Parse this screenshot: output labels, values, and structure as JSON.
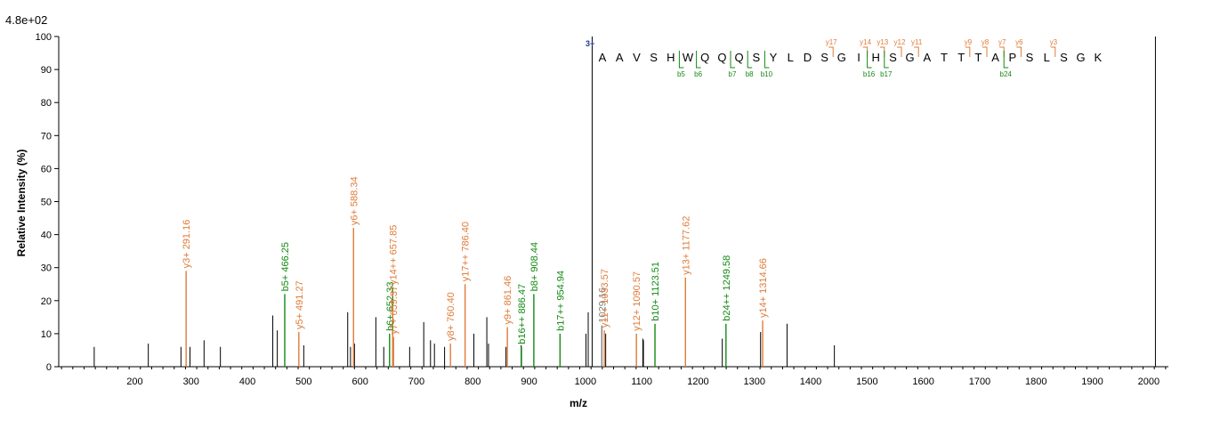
{
  "chart_data": {
    "type": "bar",
    "scale_label": "4.8e+02",
    "xlabel": "m/z",
    "ylabel": "Relative   Intensity (%)",
    "xlim": [
      65,
      2035
    ],
    "ylim": [
      0,
      100
    ],
    "x_ticks": [
      "200",
      "300",
      "400",
      "500",
      "600",
      "700",
      "800",
      "900",
      "1000",
      "1100",
      "1200",
      "1300",
      "1400",
      "1500",
      "1600",
      "1700",
      "1800",
      "1900",
      "2000"
    ],
    "y_ticks": [
      "0",
      "10",
      "20",
      "30",
      "40",
      "50",
      "60",
      "70",
      "80",
      "90",
      "100"
    ],
    "colors": {
      "unassigned": "#000000",
      "y_ion": "#e07b39",
      "b_ion": "#138a13",
      "precursor": "#808080",
      "charge": "#1f3a93"
    },
    "unassigned_peaks": [
      {
        "x": 128,
        "y": 6
      },
      {
        "x": 224,
        "y": 7
      },
      {
        "x": 282,
        "y": 6
      },
      {
        "x": 298,
        "y": 6
      },
      {
        "x": 323,
        "y": 8
      },
      {
        "x": 352,
        "y": 6
      },
      {
        "x": 445,
        "y": 15.5
      },
      {
        "x": 453,
        "y": 11
      },
      {
        "x": 500,
        "y": 6.5
      },
      {
        "x": 578,
        "y": 16.5
      },
      {
        "x": 583,
        "y": 6
      },
      {
        "x": 590,
        "y": 7
      },
      {
        "x": 628,
        "y": 15
      },
      {
        "x": 642,
        "y": 6
      },
      {
        "x": 688,
        "y": 6
      },
      {
        "x": 713,
        "y": 13.5
      },
      {
        "x": 725,
        "y": 8
      },
      {
        "x": 732,
        "y": 7
      },
      {
        "x": 750,
        "y": 6
      },
      {
        "x": 802,
        "y": 10
      },
      {
        "x": 825,
        "y": 15
      },
      {
        "x": 828,
        "y": 7
      },
      {
        "x": 859,
        "y": 6
      },
      {
        "x": 886,
        "y": 6.5
      },
      {
        "x": 1001,
        "y": 10
      },
      {
        "x": 1005,
        "y": 16.5
      },
      {
        "x": 1012,
        "y": 100
      },
      {
        "x": 1036,
        "y": 10
      },
      {
        "x": 1102,
        "y": 8.5
      },
      {
        "x": 1103,
        "y": 8
      },
      {
        "x": 1243,
        "y": 8.5
      },
      {
        "x": 1311,
        "y": 10.5
      },
      {
        "x": 1358,
        "y": 13
      },
      {
        "x": 1442,
        "y": 6.5
      },
      {
        "x": 2012,
        "y": 100
      }
    ],
    "annotated_peaks": [
      {
        "x": 291.16,
        "y": 29,
        "label": "y3+ 291.16",
        "ion": "y"
      },
      {
        "x": 466.25,
        "y": 22,
        "label": "b5+ 466.25",
        "ion": "b"
      },
      {
        "x": 491.27,
        "y": 10.5,
        "label": "y5+ 491.27",
        "ion": "y"
      },
      {
        "x": 588.34,
        "y": 42,
        "label": "y6+ 588.34",
        "ion": "y"
      },
      {
        "x": 652.33,
        "y": 10,
        "label": "b6+ 652.33",
        "ion": "b"
      },
      {
        "x": 657.85,
        "y": 24,
        "label": "y14++ 657.85",
        "ion": "y"
      },
      {
        "x": 659.37,
        "y": 9,
        "label": "y7+ 659.37",
        "ion": "y"
      },
      {
        "x": 760.4,
        "y": 7,
        "label": "y8+ 760.40",
        "ion": "y"
      },
      {
        "x": 786.4,
        "y": 25,
        "label": "y17++ 786.40",
        "ion": "y"
      },
      {
        "x": 861.46,
        "y": 12,
        "label": "y9+ 861.46",
        "ion": "y"
      },
      {
        "x": 886.47,
        "y": 6,
        "label": "b16++ 886.47",
        "ion": "b"
      },
      {
        "x": 908.44,
        "y": 22,
        "label": "b8+ 908.44",
        "ion": "b"
      },
      {
        "x": 954.94,
        "y": 10,
        "label": "b17++ 954.94",
        "ion": "b"
      },
      {
        "x": 1029.16,
        "y": 12.5,
        "label": "1029.16",
        "ion": "precursor"
      },
      {
        "x": 1033.57,
        "y": 11,
        "label": "y11+ 1033.57",
        "ion": "y"
      },
      {
        "x": 1090.57,
        "y": 10,
        "label": "y12+ 1090.57",
        "ion": "y"
      },
      {
        "x": 1123.51,
        "y": 13,
        "label": "b10+ 1123.51",
        "ion": "b"
      },
      {
        "x": 1177.62,
        "y": 27,
        "label": "y13+ 1177.62",
        "ion": "y"
      },
      {
        "x": 1249.58,
        "y": 13,
        "label": "b24++ 1249.58",
        "ion": "b"
      },
      {
        "x": 1314.66,
        "y": 14,
        "label": "y14+ 1314.66",
        "ion": "y"
      }
    ],
    "peptide": {
      "charge": "3+",
      "sequence": [
        "A",
        "A",
        "V",
        "S",
        "H",
        "W",
        "Q",
        "Q",
        "Q",
        "S",
        "Y",
        "L",
        "D",
        "S",
        "G",
        "I",
        "H",
        "S",
        "G",
        "A",
        "T",
        "T",
        "T",
        "A",
        "P",
        "S",
        "L",
        "S",
        "G",
        "K"
      ],
      "y_markers": [
        {
          "after": 14,
          "label": "y17"
        },
        {
          "after": 16,
          "label": "y14"
        },
        {
          "after": 17,
          "label": "y13"
        },
        {
          "after": 18,
          "label": "y12"
        },
        {
          "after": 19,
          "label": "y11"
        },
        {
          "after": 22,
          "label": "y9"
        },
        {
          "after": 23,
          "label": "y8"
        },
        {
          "after": 24,
          "label": "y7"
        },
        {
          "after": 25,
          "label": "y6"
        },
        {
          "after": 27,
          "label": "y3"
        }
      ],
      "b_markers": [
        {
          "after": 5,
          "label": "b5"
        },
        {
          "after": 6,
          "label": "b6"
        },
        {
          "after": 8,
          "label": "b7"
        },
        {
          "after": 9,
          "label": "b8"
        },
        {
          "after": 10,
          "label": "b10"
        },
        {
          "after": 16,
          "label": "b16"
        },
        {
          "after": 17,
          "label": "b17"
        },
        {
          "after": 24,
          "label": "b24"
        }
      ]
    }
  }
}
